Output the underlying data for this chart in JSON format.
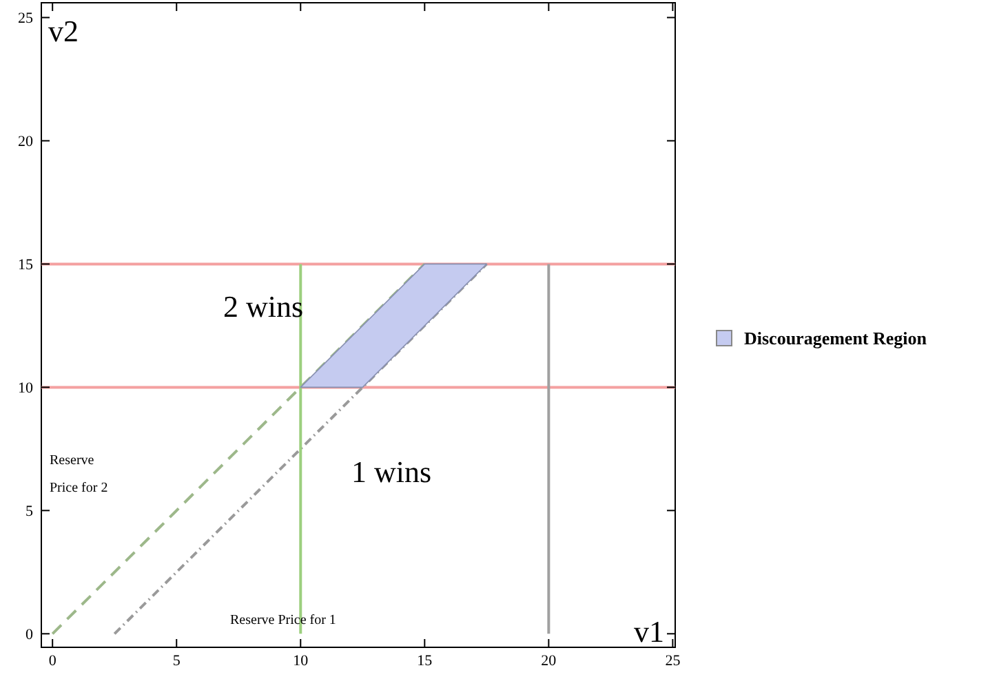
{
  "chart_data": {
    "type": "line",
    "xlabel": "v1",
    "ylabel": "v2",
    "xlim": [
      -0.45,
      25.1
    ],
    "ylim": [
      -0.55,
      25.6
    ],
    "xticks": [
      0,
      5,
      10,
      15,
      20,
      25
    ],
    "yticks": [
      0,
      5,
      10,
      15,
      20,
      25
    ],
    "series": [
      {
        "x": [
          0,
          15
        ],
        "values": [
          0,
          15
        ],
        "color": "#9db88a",
        "line_style": "dashed"
      },
      {
        "x": [
          2.5,
          17.5
        ],
        "values": [
          0,
          15
        ],
        "color": "#9a9a9a",
        "line_style": "dotted"
      },
      {
        "x": [
          10,
          10
        ],
        "values": [
          0,
          15
        ],
        "color": "#9ccf7e",
        "line_style": "solid"
      },
      {
        "x": [
          20,
          20
        ],
        "values": [
          0,
          15
        ],
        "color": "#a0a0a0",
        "line_style": "solid"
      },
      {
        "type": "area",
        "name": "Discouragement Region",
        "x": [
          10,
          15,
          17.5,
          12.5,
          10
        ],
        "values": [
          10,
          15,
          15,
          10,
          10
        ],
        "color": "#c5cbf0"
      }
    ],
    "ref_lines": [
      {
        "axis": "y",
        "value": 10,
        "color": "#f4a0a0"
      },
      {
        "axis": "y",
        "value": 15,
        "color": "#f4a0a0"
      }
    ],
    "annotations": [
      "2 wins",
      "1 wins",
      "Reserve\nPrice for 2",
      "Reserve Price for 1"
    ],
    "legend": "right"
  }
}
